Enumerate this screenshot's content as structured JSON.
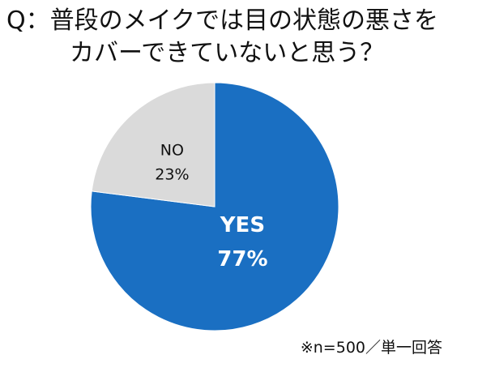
{
  "title": {
    "line1": "Q：普段のメイクでは目の状態の悪さを",
    "line2": "カバーできていないと思う？"
  },
  "note": "※n=500／単一回答",
  "chart_data": {
    "type": "pie",
    "categories": [
      "YES",
      "NO"
    ],
    "values": [
      77,
      23
    ],
    "labels": [
      "77%",
      "23%"
    ],
    "colors": [
      "#1a6fc2",
      "#dadada"
    ],
    "label_colors": [
      "#ffffff",
      "#111111"
    ]
  }
}
